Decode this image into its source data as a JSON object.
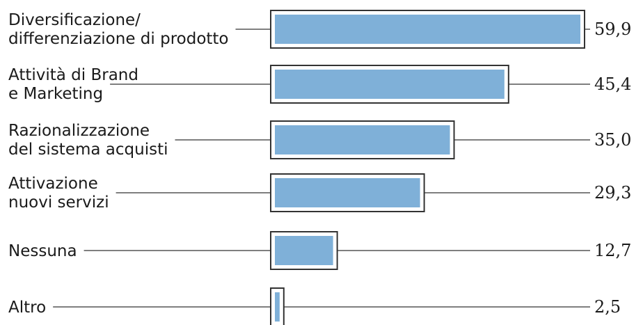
{
  "chart_data": {
    "type": "bar",
    "orientation": "horizontal",
    "categories": [
      [
        "Diversificazione/",
        "differenziazione di prodotto"
      ],
      [
        "Attività di Brand",
        "e Marketing"
      ],
      [
        "Razionalizzazione",
        "del sistema acquisti"
      ],
      [
        "Attivazione",
        "nuovi servizi"
      ],
      [
        "Nessuna"
      ],
      [
        "Altro"
      ]
    ],
    "values": [
      59.9,
      45.4,
      35.0,
      29.3,
      12.7,
      2.5
    ],
    "value_labels": [
      "59,9",
      "45,4",
      "35,0",
      "29,3",
      "12,7",
      "2,5"
    ],
    "xlim": [
      0,
      59.9
    ],
    "title": "",
    "xlabel": "",
    "ylabel": "",
    "grid": false,
    "legend": "none",
    "bar_color": "#7fb0d8",
    "frame_color": "#333333",
    "leader_color": "#555555"
  }
}
